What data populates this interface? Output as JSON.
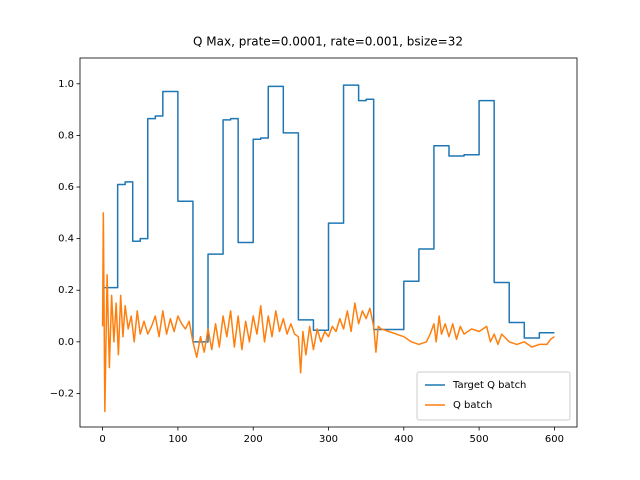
{
  "chart_data": {
    "type": "line",
    "title": "Q Max, prate=0.0001, rate=0.001, bsize=32",
    "xlim": [
      -30,
      630
    ],
    "xticks": [
      0,
      100,
      200,
      300,
      400,
      500,
      600
    ],
    "ylim": [
      -0.33,
      1.1
    ],
    "yticks": [
      {
        "value": -0.2,
        "label": "−0.2"
      },
      {
        "value": 0,
        "label": "0.0"
      },
      0.2,
      0.4,
      0.6,
      0.8,
      {
        "value": 1,
        "label": "1.0"
      }
    ],
    "legend": "lower right",
    "series": [
      {
        "name": "Target Q batch",
        "color": "#1f77b4",
        "x": [
          0,
          20,
          20,
          30,
          30,
          40,
          40,
          50,
          50,
          60,
          60,
          70,
          70,
          80,
          80,
          100,
          100,
          120,
          120,
          140,
          140,
          160,
          160,
          170,
          170,
          180,
          180,
          200,
          200,
          210,
          210,
          220,
          220,
          240,
          240,
          260,
          260,
          280,
          280,
          300,
          300,
          320,
          320,
          340,
          340,
          350,
          350,
          360,
          360,
          400,
          400,
          420,
          420,
          440,
          440,
          460,
          460,
          480,
          480,
          500,
          500,
          520,
          520,
          540,
          540,
          560,
          560,
          580,
          580,
          600
        ],
        "values": [
          0.21,
          0.21,
          0.61,
          0.61,
          0.62,
          0.62,
          0.39,
          0.39,
          0.4,
          0.4,
          0.865,
          0.865,
          0.875,
          0.875,
          0.97,
          0.97,
          0.545,
          0.545,
          0,
          0,
          0.34,
          0.34,
          0.86,
          0.86,
          0.865,
          0.865,
          0.385,
          0.385,
          0.785,
          0.785,
          0.79,
          0.79,
          0.99,
          0.99,
          0.81,
          0.81,
          0.085,
          0.085,
          0.045,
          0.045,
          0.46,
          0.46,
          0.995,
          0.995,
          0.935,
          0.935,
          0.94,
          0.94,
          0.048,
          0.048,
          0.235,
          0.235,
          0.36,
          0.36,
          0.76,
          0.76,
          0.72,
          0.72,
          0.725,
          0.725,
          0.935,
          0.935,
          0.23,
          0.23,
          0.075,
          0.075,
          0.015,
          0.015,
          0.035,
          0.035
        ]
      },
      {
        "name": "Q batch",
        "color": "#ff7f0e",
        "x": [
          0,
          1,
          3,
          6,
          9,
          12,
          15,
          18,
          21,
          24,
          27,
          30,
          34,
          38,
          42,
          46,
          50,
          55,
          60,
          65,
          70,
          75,
          80,
          85,
          90,
          95,
          100,
          105,
          110,
          115,
          120,
          125,
          130,
          135,
          140,
          145,
          150,
          155,
          160,
          165,
          170,
          175,
          180,
          185,
          190,
          195,
          200,
          205,
          210,
          215,
          220,
          225,
          230,
          235,
          240,
          245,
          250,
          255,
          260,
          263,
          266,
          270,
          275,
          280,
          285,
          290,
          295,
          300,
          305,
          310,
          315,
          320,
          325,
          330,
          335,
          340,
          345,
          350,
          355,
          360,
          363,
          366,
          370,
          380,
          390,
          400,
          410,
          420,
          430,
          435,
          440,
          443,
          447,
          450,
          455,
          460,
          465,
          470,
          475,
          480,
          490,
          500,
          510,
          515,
          520,
          525,
          530,
          540,
          550,
          560,
          570,
          580,
          590,
          595,
          600
        ],
        "values": [
          0.06,
          0.5,
          -0.27,
          0.26,
          -0.1,
          0.18,
          0,
          0.15,
          -0.05,
          0.18,
          0.02,
          0.14,
          0.05,
          0.1,
          0,
          0.12,
          0.03,
          0.08,
          0.03,
          0.06,
          0.1,
          0.02,
          0.12,
          0.03,
          0.09,
          0.04,
          0.1,
          0.07,
          0.05,
          0.08,
          0,
          -0.06,
          0.02,
          -0.04,
          0.05,
          -0.03,
          0.07,
          -0.02,
          0.1,
          0.02,
          0.12,
          -0.02,
          0.1,
          -0.03,
          0.08,
          0,
          0.1,
          0.03,
          0.14,
          0,
          0.1,
          0.02,
          0.12,
          0.04,
          0.09,
          0.03,
          0.07,
          0.03,
          0.02,
          -0.12,
          0.04,
          -0.05,
          0.06,
          -0.03,
          0.05,
          0,
          0.04,
          0.02,
          0.06,
          0.04,
          0.09,
          0.05,
          0.12,
          0.04,
          0.15,
          0.07,
          0.12,
          0.09,
          0.13,
          0.06,
          -0.04,
          0.06,
          0.05,
          0.04,
          0.03,
          0.02,
          0,
          -0.01,
          0,
          0.03,
          0.07,
          0,
          0.1,
          0.03,
          0.07,
          0.02,
          0.07,
          0.01,
          0.06,
          0.03,
          0.05,
          0.04,
          0.06,
          0,
          0.03,
          -0.01,
          0.03,
          0,
          -0.01,
          0,
          -0.02,
          -0.01,
          -0.01,
          0.01,
          0.02
        ]
      }
    ]
  }
}
